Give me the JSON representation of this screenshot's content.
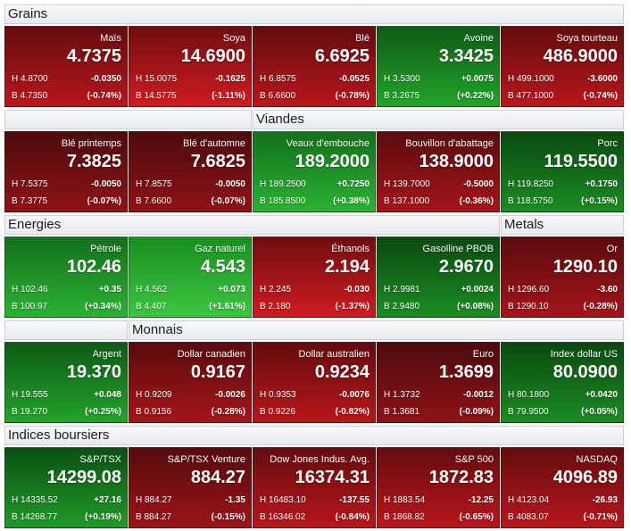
{
  "sections": [
    {
      "header": "Grains",
      "tiles": [
        {
          "name": "Maïs",
          "price": "4.7375",
          "high": "H 4.8700",
          "change": "-0.0350",
          "low": "B 4.7350",
          "change_pct": "(-0.74%)",
          "colors": {
            "top": "#640c0e",
            "bottom": "#b8161b"
          }
        },
        {
          "name": "Soya",
          "price": "14.6900",
          "high": "H 15.0075",
          "change": "-0.1625",
          "low": "B 14.5775",
          "change_pct": "(-1.11%)",
          "colors": {
            "top": "#700d0f",
            "bottom": "#cf1b20"
          }
        },
        {
          "name": "Blé",
          "price": "6.6925",
          "high": "H 6.8575",
          "change": "-0.0525",
          "low": "B 6.6600",
          "change_pct": "(-0.78%)",
          "colors": {
            "top": "#640c0e",
            "bottom": "#b8161b"
          }
        },
        {
          "name": "Avoine",
          "price": "3.3425",
          "high": "H 3.5300",
          "change": "+0.0075",
          "low": "B 3.2675",
          "change_pct": "(+0.22%)",
          "colors": {
            "top": "#0e5a15",
            "bottom": "#22a42b"
          }
        },
        {
          "name": "Soya tourteau",
          "price": "486.9000",
          "high": "H 499.1000",
          "change": "-3.6000",
          "low": "B 477.1000",
          "change_pct": "(-0.74%)",
          "colors": {
            "top": "#640c0e",
            "bottom": "#b8161b"
          }
        }
      ]
    },
    {
      "header": "Viandes",
      "tiles": [
        {
          "name": "Blé printemps",
          "price": "7.3825",
          "high": "H 7.5375",
          "change": "-0.0050",
          "low": "B 7.3775",
          "change_pct": "(-0.07%)",
          "colors": {
            "top": "#4e0a0c",
            "bottom": "#8e1317"
          }
        },
        {
          "name": "Blé d'automne",
          "price": "7.6825",
          "high": "H 7.8575",
          "change": "-0.0050",
          "low": "B 7.6600",
          "change_pct": "(-0.07%)",
          "colors": {
            "top": "#4e0a0c",
            "bottom": "#8e1317"
          }
        },
        {
          "name": "Veaux d'embouche",
          "price": "189.2000",
          "high": "H 189.2500",
          "change": "+0.7250",
          "low": "B 185.8500",
          "change_pct": "(+0.38%)",
          "colors": {
            "top": "#12701a",
            "bottom": "#2bb233"
          }
        },
        {
          "name": "Bouvillon d'abattage",
          "price": "138.9000",
          "high": "H 139.7000",
          "change": "-0.5000",
          "low": "B 137.1000",
          "change_pct": "(-0.36%)",
          "colors": {
            "top": "#5a0b0d",
            "bottom": "#a4151a"
          }
        },
        {
          "name": "Porc",
          "price": "119.5500",
          "high": "H 119.8250",
          "change": "+0.1750",
          "low": "B 118.5750",
          "change_pct": "(+0.15%)",
          "colors": {
            "top": "#0a4a10",
            "bottom": "#1b8c22"
          }
        }
      ]
    },
    {
      "header": "Energies",
      "header_secondary": "Metals",
      "tiles": [
        {
          "name": "Pétrole",
          "price": "102.46",
          "high": "H 102.46",
          "change": "+0.35",
          "low": "B 100.97",
          "change_pct": "(+0.34%)",
          "colors": {
            "top": "#12701a",
            "bottom": "#2bb233"
          }
        },
        {
          "name": "Gaz naturel",
          "price": "4.543",
          "high": "H 4.562",
          "change": "+0.073",
          "low": "B 4.407",
          "change_pct": "(+1.61%)",
          "colors": {
            "top": "#1a8e20",
            "bottom": "#3cc640"
          }
        },
        {
          "name": "Éthanols",
          "price": "2.194",
          "high": "H 2.245",
          "change": "-0.030",
          "low": "B 2.180",
          "change_pct": "(-1.37%)",
          "colors": {
            "top": "#700d0f",
            "bottom": "#cf1b20"
          }
        },
        {
          "name": "Gasolline PBOB",
          "price": "2.9670",
          "high": "H 2.9981",
          "change": "+0.0024",
          "low": "B 2.9480",
          "change_pct": "(+0.08%)",
          "colors": {
            "top": "#0a4a10",
            "bottom": "#1b8c22"
          }
        },
        {
          "name": "Or",
          "price": "1290.10",
          "high": "H 1296.60",
          "change": "-3.60",
          "low": "B 1290.10",
          "change_pct": "(-0.28%)",
          "colors": {
            "top": "#5a0b0d",
            "bottom": "#a4151a"
          }
        }
      ]
    },
    {
      "header": "Monnais",
      "tiles": [
        {
          "name": "Argent",
          "price": "19.370",
          "high": "H 19.555",
          "change": "+0.048",
          "low": "B 19.270",
          "change_pct": "(+0.25%)",
          "colors": {
            "top": "#0e5a15",
            "bottom": "#22a42b"
          }
        },
        {
          "name": "Dollar canadien",
          "price": "0.9167",
          "high": "H 0.9209",
          "change": "-0.0026",
          "low": "B 0.9156",
          "change_pct": "(-0.28%)",
          "colors": {
            "top": "#5a0b0d",
            "bottom": "#a4151a"
          }
        },
        {
          "name": "Dollar australien",
          "price": "0.9234",
          "high": "H 0.9353",
          "change": "-0.0076",
          "low": "B 0.9226",
          "change_pct": "(-0.82%)",
          "colors": {
            "top": "#640c0e",
            "bottom": "#b8161b"
          }
        },
        {
          "name": "Euro",
          "price": "1.3699",
          "high": "H 1.3732",
          "change": "-0.0012",
          "low": "B 1.3681",
          "change_pct": "(-0.09%)",
          "colors": {
            "top": "#4e0a0c",
            "bottom": "#8e1317"
          }
        },
        {
          "name": "Index dollar US",
          "price": "80.0900",
          "high": "H 80.1800",
          "change": "+0.0420",
          "low": "B 79.9500",
          "change_pct": "(+0.05%)",
          "colors": {
            "top": "#0a4a10",
            "bottom": "#1b8c22"
          }
        }
      ]
    },
    {
      "header": "Indices boursiers",
      "tiles": [
        {
          "name": "S&P/TSX",
          "price": "14299.08",
          "high": "H 14335.52",
          "change": "+27.16",
          "low": "B 14268.77",
          "change_pct": "(+0.19%)",
          "colors": {
            "top": "#0b5012",
            "bottom": "#1f9a27"
          }
        },
        {
          "name": "S&P/TSX Venture",
          "price": "884.27",
          "high": "H 884.27",
          "change": "-1.35",
          "low": "B 884.27",
          "change_pct": "(-0.15%)",
          "colors": {
            "top": "#550b0d",
            "bottom": "#9c1418"
          }
        },
        {
          "name": "Dow Jones Indus. Avg.",
          "price": "16374.31",
          "high": "H 16483.10",
          "change": "-137.55",
          "low": "B 16346.02",
          "change_pct": "(-0.84%)",
          "colors": {
            "top": "#640c0e",
            "bottom": "#b8161b"
          }
        },
        {
          "name": "S&P 500",
          "price": "1872.83",
          "high": "H 1883.54",
          "change": "-12.25",
          "low": "B 1868.82",
          "change_pct": "(-0.65%)",
          "colors": {
            "top": "#640c0e",
            "bottom": "#b8161b"
          }
        },
        {
          "name": "NASDAQ",
          "price": "4096.89",
          "high": "H 4123.04",
          "change": "-26.93",
          "low": "B 4083.07",
          "change_pct": "(-0.71%)",
          "colors": {
            "top": "#640c0e",
            "bottom": "#b8161b"
          }
        }
      ]
    }
  ]
}
